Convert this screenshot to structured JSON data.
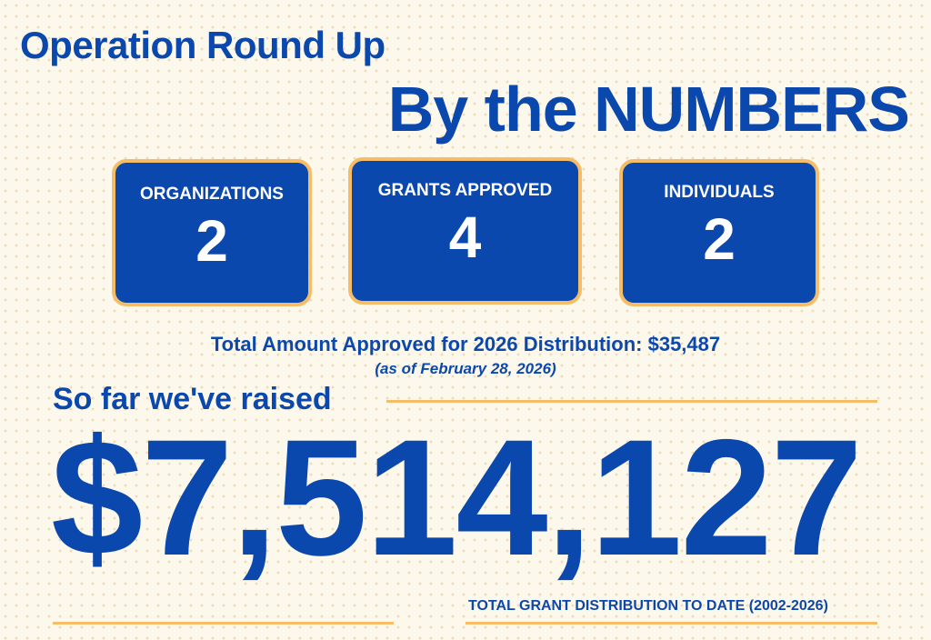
{
  "header": {
    "title": "Operation Round Up",
    "subtitle": "By the NUMBERS"
  },
  "stats": [
    {
      "label": "ORGANIZATIONS",
      "value": 2
    },
    {
      "label": "GRANTS APPROVED",
      "value": 4
    },
    {
      "label": "INDIVIDUALS",
      "value": 2
    }
  ],
  "total_line": "Total Amount Approved for 2026 Distribution: $35,487",
  "as_of": "(as of February 28, 2026)",
  "raised_label": "So far we've raised",
  "raised_amount": "$7,514,127",
  "caption": "TOTAL GRANT DISTRIBUTION TO DATE (2002-2026)"
}
